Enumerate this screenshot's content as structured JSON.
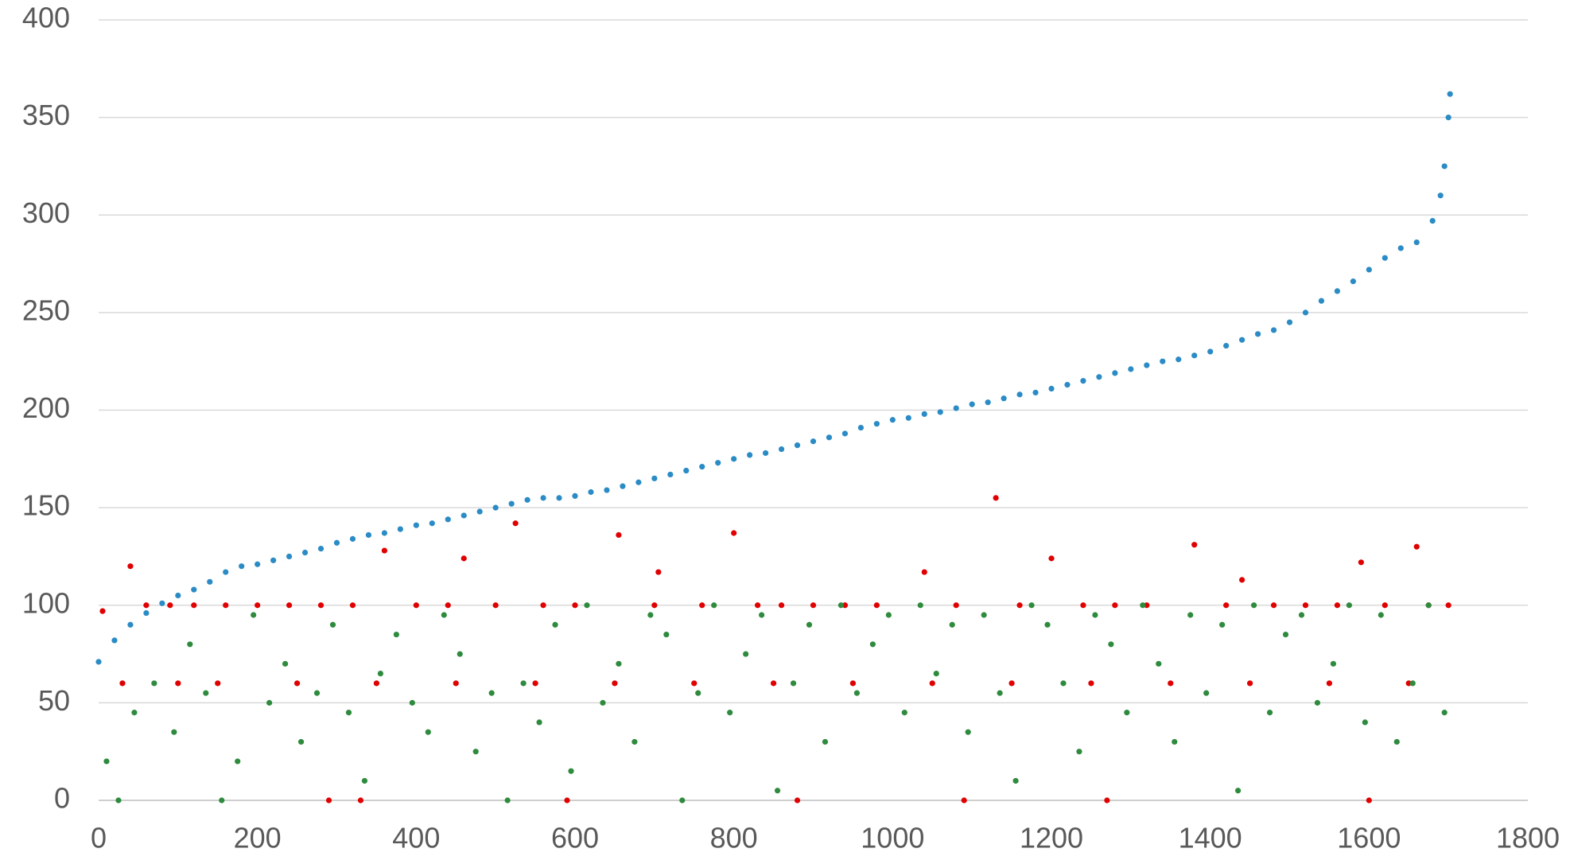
{
  "chart_data": {
    "type": "scatter",
    "xlim": [
      0,
      1800
    ],
    "xticks": [
      0,
      200,
      400,
      600,
      800,
      1000,
      1200,
      1400,
      1600,
      1800
    ],
    "ylim": [
      0,
      400
    ],
    "yticks": [
      0,
      50,
      100,
      150,
      200,
      250,
      300,
      350,
      400
    ],
    "grid": true,
    "series": [
      {
        "color": "#2a8bc5",
        "x": [
          0,
          20,
          40,
          60,
          80,
          100,
          120,
          140,
          160,
          180,
          200,
          220,
          240,
          260,
          280,
          300,
          320,
          340,
          360,
          380,
          400,
          420,
          440,
          460,
          480,
          500,
          520,
          540,
          560,
          580,
          600,
          620,
          640,
          660,
          680,
          700,
          720,
          740,
          760,
          780,
          800,
          820,
          840,
          860,
          880,
          900,
          920,
          940,
          960,
          980,
          1000,
          1020,
          1040,
          1060,
          1080,
          1100,
          1120,
          1140,
          1160,
          1180,
          1200,
          1220,
          1240,
          1260,
          1280,
          1300,
          1320,
          1340,
          1360,
          1380,
          1400,
          1420,
          1440,
          1460,
          1480,
          1500,
          1520,
          1540,
          1560,
          1580,
          1600,
          1620,
          1640,
          1660,
          1680,
          1690,
          1695,
          1700,
          1702
        ],
        "values": [
          71,
          82,
          90,
          96,
          101,
          105,
          108,
          112,
          117,
          120,
          121,
          123,
          125,
          127,
          129,
          132,
          134,
          136,
          137,
          139,
          141,
          142,
          144,
          146,
          148,
          150,
          152,
          154,
          155,
          155,
          156,
          158,
          159,
          161,
          163,
          165,
          167,
          169,
          171,
          173,
          175,
          177,
          178,
          180,
          182,
          184,
          186,
          188,
          191,
          193,
          195,
          196,
          198,
          199,
          201,
          203,
          204,
          206,
          208,
          209,
          211,
          213,
          215,
          217,
          219,
          221,
          223,
          225,
          226,
          228,
          230,
          233,
          236,
          239,
          241,
          245,
          250,
          256,
          261,
          266,
          272,
          278,
          283,
          286,
          297,
          310,
          325,
          350,
          362
        ]
      },
      {
        "color": "#e00000",
        "x": [
          5,
          40,
          60,
          90,
          120,
          160,
          200,
          240,
          280,
          320,
          360,
          400,
          440,
          460,
          500,
          525,
          560,
          600,
          655,
          700,
          705,
          760,
          800,
          830,
          860,
          900,
          940,
          980,
          1040,
          1080,
          1130,
          1160,
          1200,
          1240,
          1280,
          1320,
          1380,
          1420,
          1440,
          1480,
          1520,
          1560,
          1590,
          1620,
          1660,
          1675,
          1700,
          30,
          100,
          150,
          250,
          350,
          450,
          550,
          650,
          750,
          850,
          950,
          1050,
          1150,
          1250,
          1350,
          1450,
          1550,
          1650,
          290,
          330,
          590,
          880,
          1090,
          1270,
          1600
        ],
        "values": [
          97,
          120,
          100,
          100,
          100,
          100,
          100,
          100,
          100,
          100,
          128,
          100,
          100,
          124,
          100,
          142,
          100,
          100,
          136,
          100,
          117,
          100,
          137,
          100,
          100,
          100,
          100,
          100,
          117,
          100,
          155,
          100,
          124,
          100,
          100,
          100,
          131,
          100,
          113,
          100,
          100,
          100,
          122,
          100,
          130,
          100,
          100,
          60,
          60,
          60,
          60,
          60,
          60,
          60,
          60,
          60,
          60,
          60,
          60,
          60,
          60,
          60,
          60,
          60,
          60,
          0,
          0,
          0,
          0,
          0,
          0,
          0
        ]
      },
      {
        "color": "#2e8b3e",
        "x": [
          10,
          25,
          45,
          70,
          95,
          115,
          135,
          155,
          175,
          195,
          215,
          235,
          255,
          275,
          295,
          315,
          335,
          355,
          375,
          395,
          415,
          435,
          455,
          475,
          495,
          515,
          535,
          555,
          575,
          595,
          615,
          635,
          655,
          675,
          695,
          715,
          735,
          755,
          775,
          795,
          815,
          835,
          855,
          875,
          895,
          915,
          935,
          955,
          975,
          995,
          1015,
          1035,
          1055,
          1075,
          1095,
          1115,
          1135,
          1155,
          1175,
          1195,
          1215,
          1235,
          1255,
          1275,
          1295,
          1315,
          1335,
          1355,
          1375,
          1395,
          1415,
          1435,
          1455,
          1475,
          1495,
          1515,
          1535,
          1555,
          1575,
          1595,
          1615,
          1635,
          1655,
          1675,
          1695
        ],
        "values": [
          20,
          0,
          45,
          60,
          35,
          80,
          55,
          0,
          20,
          95,
          50,
          70,
          30,
          55,
          90,
          45,
          10,
          65,
          85,
          50,
          35,
          95,
          75,
          25,
          55,
          0,
          60,
          40,
          90,
          15,
          100,
          50,
          70,
          30,
          95,
          85,
          0,
          55,
          100,
          45,
          75,
          95,
          5,
          60,
          90,
          30,
          100,
          55,
          80,
          95,
          45,
          100,
          65,
          90,
          35,
          95,
          55,
          10,
          100,
          90,
          60,
          25,
          95,
          80,
          45,
          100,
          70,
          30,
          95,
          55,
          90,
          5,
          100,
          45,
          85,
          95,
          50,
          70,
          100,
          40,
          95,
          30,
          60,
          100,
          45
        ]
      }
    ]
  }
}
